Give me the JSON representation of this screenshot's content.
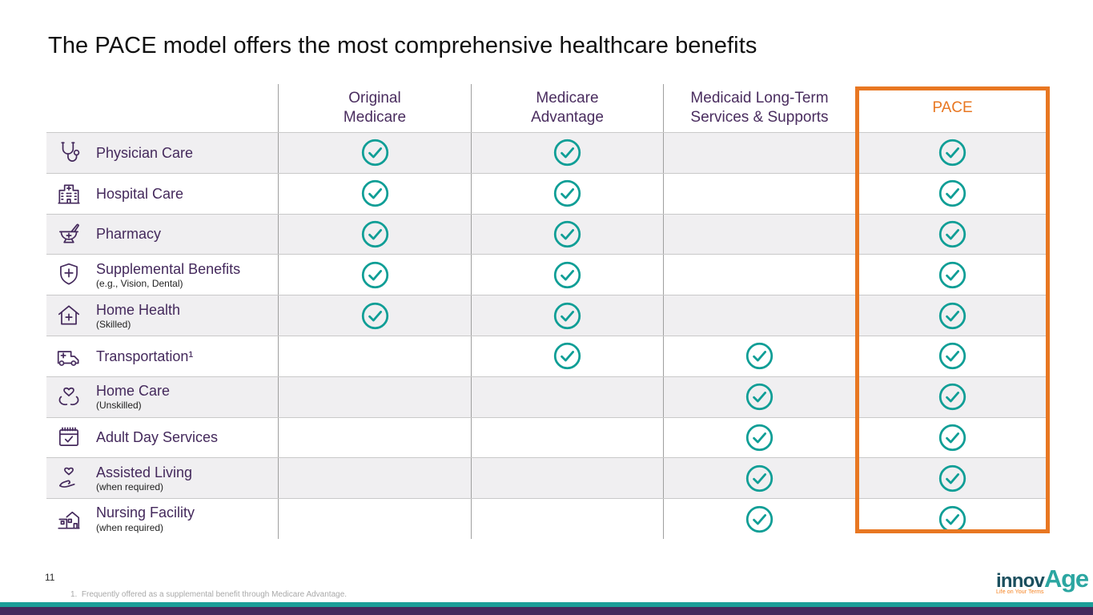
{
  "title": "The PACE model offers the most comprehensive healthcare benefits",
  "table": {
    "columns": [
      {
        "label": "Original\nMedicare"
      },
      {
        "label": "Medicare\nAdvantage"
      },
      {
        "label": "Medicaid Long-Term\nServices & Supports"
      },
      {
        "label": "PACE",
        "highlighted": true
      }
    ],
    "rows": [
      {
        "icon": "stethoscope-icon",
        "label": "Physician Care",
        "sublabel": "",
        "checks": [
          true,
          true,
          false,
          true
        ]
      },
      {
        "icon": "hospital-icon",
        "label": "Hospital Care",
        "sublabel": "",
        "checks": [
          true,
          true,
          false,
          true
        ]
      },
      {
        "icon": "pharmacy-icon",
        "label": "Pharmacy",
        "sublabel": "",
        "checks": [
          true,
          true,
          false,
          true
        ]
      },
      {
        "icon": "shield-plus-icon",
        "label": "Supplemental Benefits",
        "sublabel": "(e.g., Vision, Dental)",
        "checks": [
          true,
          true,
          false,
          true
        ]
      },
      {
        "icon": "house-medical-icon",
        "label": "Home Health",
        "sublabel": "(Skilled)",
        "checks": [
          true,
          true,
          false,
          true
        ]
      },
      {
        "icon": "ambulance-icon",
        "label": "Transportation¹",
        "sublabel": "",
        "checks": [
          false,
          true,
          true,
          true
        ]
      },
      {
        "icon": "hands-heart-icon",
        "label": "Home Care",
        "sublabel": "(Unskilled)",
        "checks": [
          false,
          false,
          true,
          true
        ]
      },
      {
        "icon": "calendar-check-icon",
        "label": "Adult Day Services",
        "sublabel": "",
        "checks": [
          false,
          false,
          true,
          true
        ]
      },
      {
        "icon": "hand-heart-icon",
        "label": "Assisted Living",
        "sublabel": "(when required)",
        "checks": [
          false,
          false,
          true,
          true
        ]
      },
      {
        "icon": "nursing-facility-icon",
        "label": "Nursing Facility",
        "sublabel": "(when required)",
        "checks": [
          false,
          false,
          true,
          true
        ]
      }
    ],
    "check_icon": "check-circle-icon"
  },
  "footer": {
    "page_number": "11",
    "footnote": "1.  Frequently offered as a supplemental benefit through Medicare Advantage."
  },
  "logo": {
    "text_primary": "innov",
    "text_secondary": "Age",
    "tagline": "Life on Your Terms"
  },
  "colors": {
    "accent_purple": "#4A2D5F",
    "check_teal": "#0F9E96",
    "highlight_orange": "#E87722",
    "bar_teal": "#1B9E98",
    "bar_purple": "#44295C"
  }
}
